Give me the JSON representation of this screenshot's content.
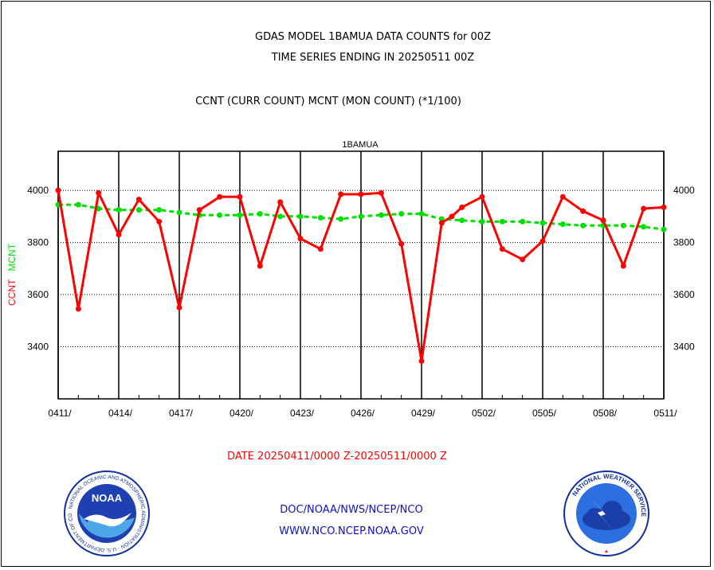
{
  "header": {
    "title_line1": "GDAS MODEL 1BAMUA DATA COUNTS for 00Z",
    "title_line2": "TIME SERIES ENDING IN 20250511 00Z",
    "subtitle": "CCNT (CURR COUNT) MCNT (MON COUNT) (*1/100)"
  },
  "date_range": "DATE 20250411/0000 Z-20250511/0000 Z",
  "footer": {
    "line1": "DOC/NOAA/NWS/NCEP/NCO",
    "line2": "WWW.NCO.NCEP.NOAA.GOV"
  },
  "logos": {
    "noaa_text": "NOAA",
    "noaa_ring": "NATIONAL OCEANIC AND ATMOSPHERIC ADMINISTRATION · U.S. DEPARTMENT OF COMMERCE",
    "nws_ring": "NATIONAL WEATHER SERVICE"
  },
  "colors": {
    "ccnt": "#ff0000",
    "mcnt": "#00e000",
    "panel_title": "#1010c0"
  },
  "chart_data": {
    "type": "line",
    "title": "1BAMUA",
    "ylabel_parts": [
      "CCNT",
      "MCNT"
    ],
    "ylim": [
      3200,
      4150
    ],
    "yticks": [
      3400,
      3600,
      3800,
      4000
    ],
    "xlim": [
      0,
      30
    ],
    "xticks": [
      {
        "x": 0,
        "label": "0411/"
      },
      {
        "x": 3,
        "label": "0414/"
      },
      {
        "x": 6,
        "label": "0417/"
      },
      {
        "x": 9,
        "label": "0420/"
      },
      {
        "x": 12,
        "label": "0423/"
      },
      {
        "x": 15,
        "label": "0426/"
      },
      {
        "x": 18,
        "label": "0429/"
      },
      {
        "x": 21,
        "label": "0502/"
      },
      {
        "x": 24,
        "label": "0505/"
      },
      {
        "x": 27,
        "label": "0508/"
      },
      {
        "x": 30,
        "label": "0511/"
      }
    ],
    "grid": true,
    "series": [
      {
        "name": "CCNT",
        "x": [
          0,
          1,
          2,
          3,
          4,
          5,
          6,
          7,
          8,
          9,
          10,
          11,
          12,
          13,
          14,
          15,
          16,
          17,
          18,
          19,
          19.5,
          20,
          21,
          22,
          23,
          24,
          25,
          26,
          27,
          28,
          29,
          30
        ],
        "values": [
          4000,
          3545,
          3990,
          3830,
          3965,
          3880,
          3550,
          3925,
          3975,
          3975,
          3710,
          3955,
          3815,
          3775,
          3985,
          3985,
          3990,
          3795,
          3345,
          3875,
          3900,
          3935,
          3975,
          3775,
          3735,
          3805,
          3975,
          3920,
          3885,
          3710,
          3930,
          3935
        ]
      },
      {
        "name": "MCNT",
        "x": [
          0,
          1,
          2,
          3,
          4,
          5,
          6,
          7,
          8,
          9,
          10,
          11,
          12,
          13,
          14,
          15,
          16,
          17,
          18,
          19,
          20,
          21,
          22,
          23,
          24,
          25,
          26,
          27,
          28,
          29,
          30
        ],
        "values": [
          3945,
          3945,
          3930,
          3925,
          3925,
          3925,
          3915,
          3905,
          3905,
          3905,
          3910,
          3900,
          3900,
          3895,
          3890,
          3900,
          3905,
          3910,
          3910,
          3890,
          3885,
          3880,
          3880,
          3880,
          3875,
          3870,
          3865,
          3865,
          3865,
          3860,
          3850
        ]
      }
    ]
  }
}
